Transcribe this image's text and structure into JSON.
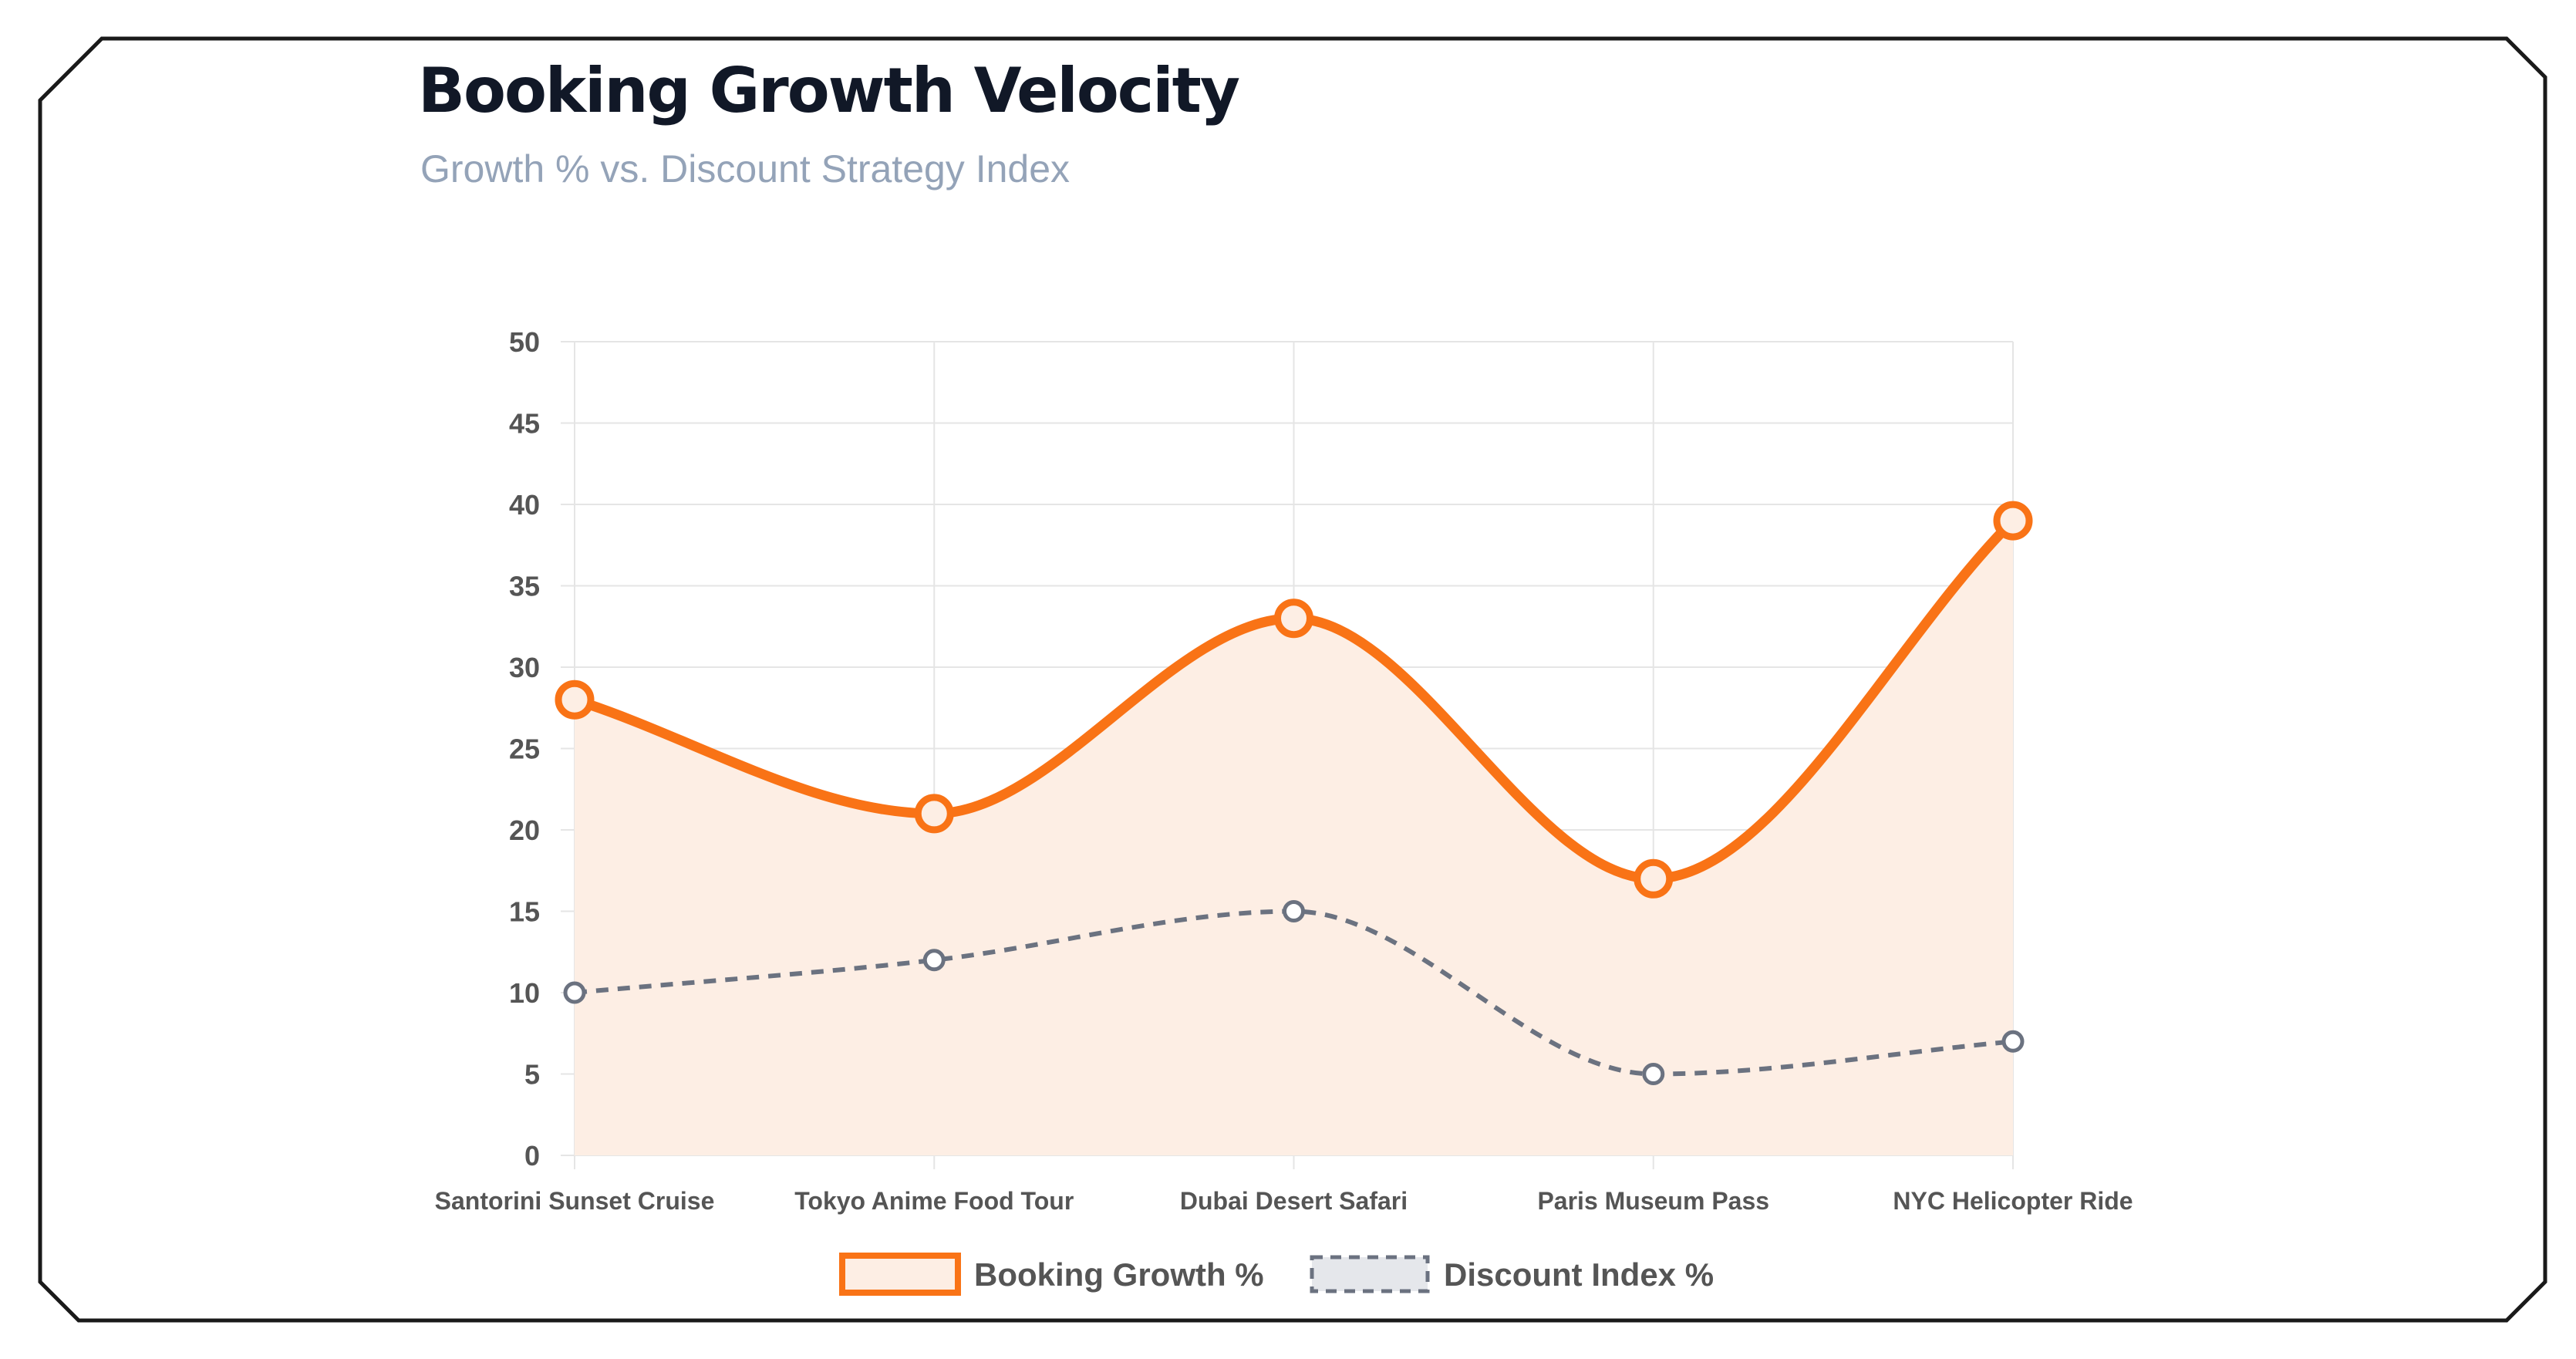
{
  "header": {
    "title": "Booking Growth Velocity",
    "subtitle": "Growth % vs. Discount Strategy Index"
  },
  "colors": {
    "title": "#111827",
    "subtitle": "#94a3b8",
    "growth": "#f97316",
    "growth_fill": "#fdeee4",
    "discount": "#6b7280",
    "discount_fill": "#e5e7eb",
    "grid": "#e5e5e5",
    "card_border": "#1a1a1a"
  },
  "chart_data": {
    "type": "line",
    "title": "Booking Growth Velocity",
    "subtitle": "Growth % vs. Discount Strategy Index",
    "categories": [
      "Santorini Sunset Cruise",
      "Tokyo Anime Food Tour",
      "Dubai Desert Safari",
      "Paris Museum Pass",
      "NYC Helicopter Ride"
    ],
    "series": [
      {
        "name": "Booking Growth %",
        "values": [
          28,
          21,
          33,
          17,
          39
        ],
        "style": "solid",
        "filled": true,
        "color": "#f97316"
      },
      {
        "name": "Discount Index %",
        "values": [
          10,
          12,
          15,
          5,
          7
        ],
        "style": "dashed",
        "filled": false,
        "color": "#6b7280"
      }
    ],
    "ylim": [
      0,
      50
    ],
    "yticks": [
      0,
      5,
      10,
      15,
      20,
      25,
      30,
      35,
      40,
      45,
      50
    ],
    "grid": true,
    "legend_position": "bottom",
    "xlabel": "",
    "ylabel": ""
  }
}
